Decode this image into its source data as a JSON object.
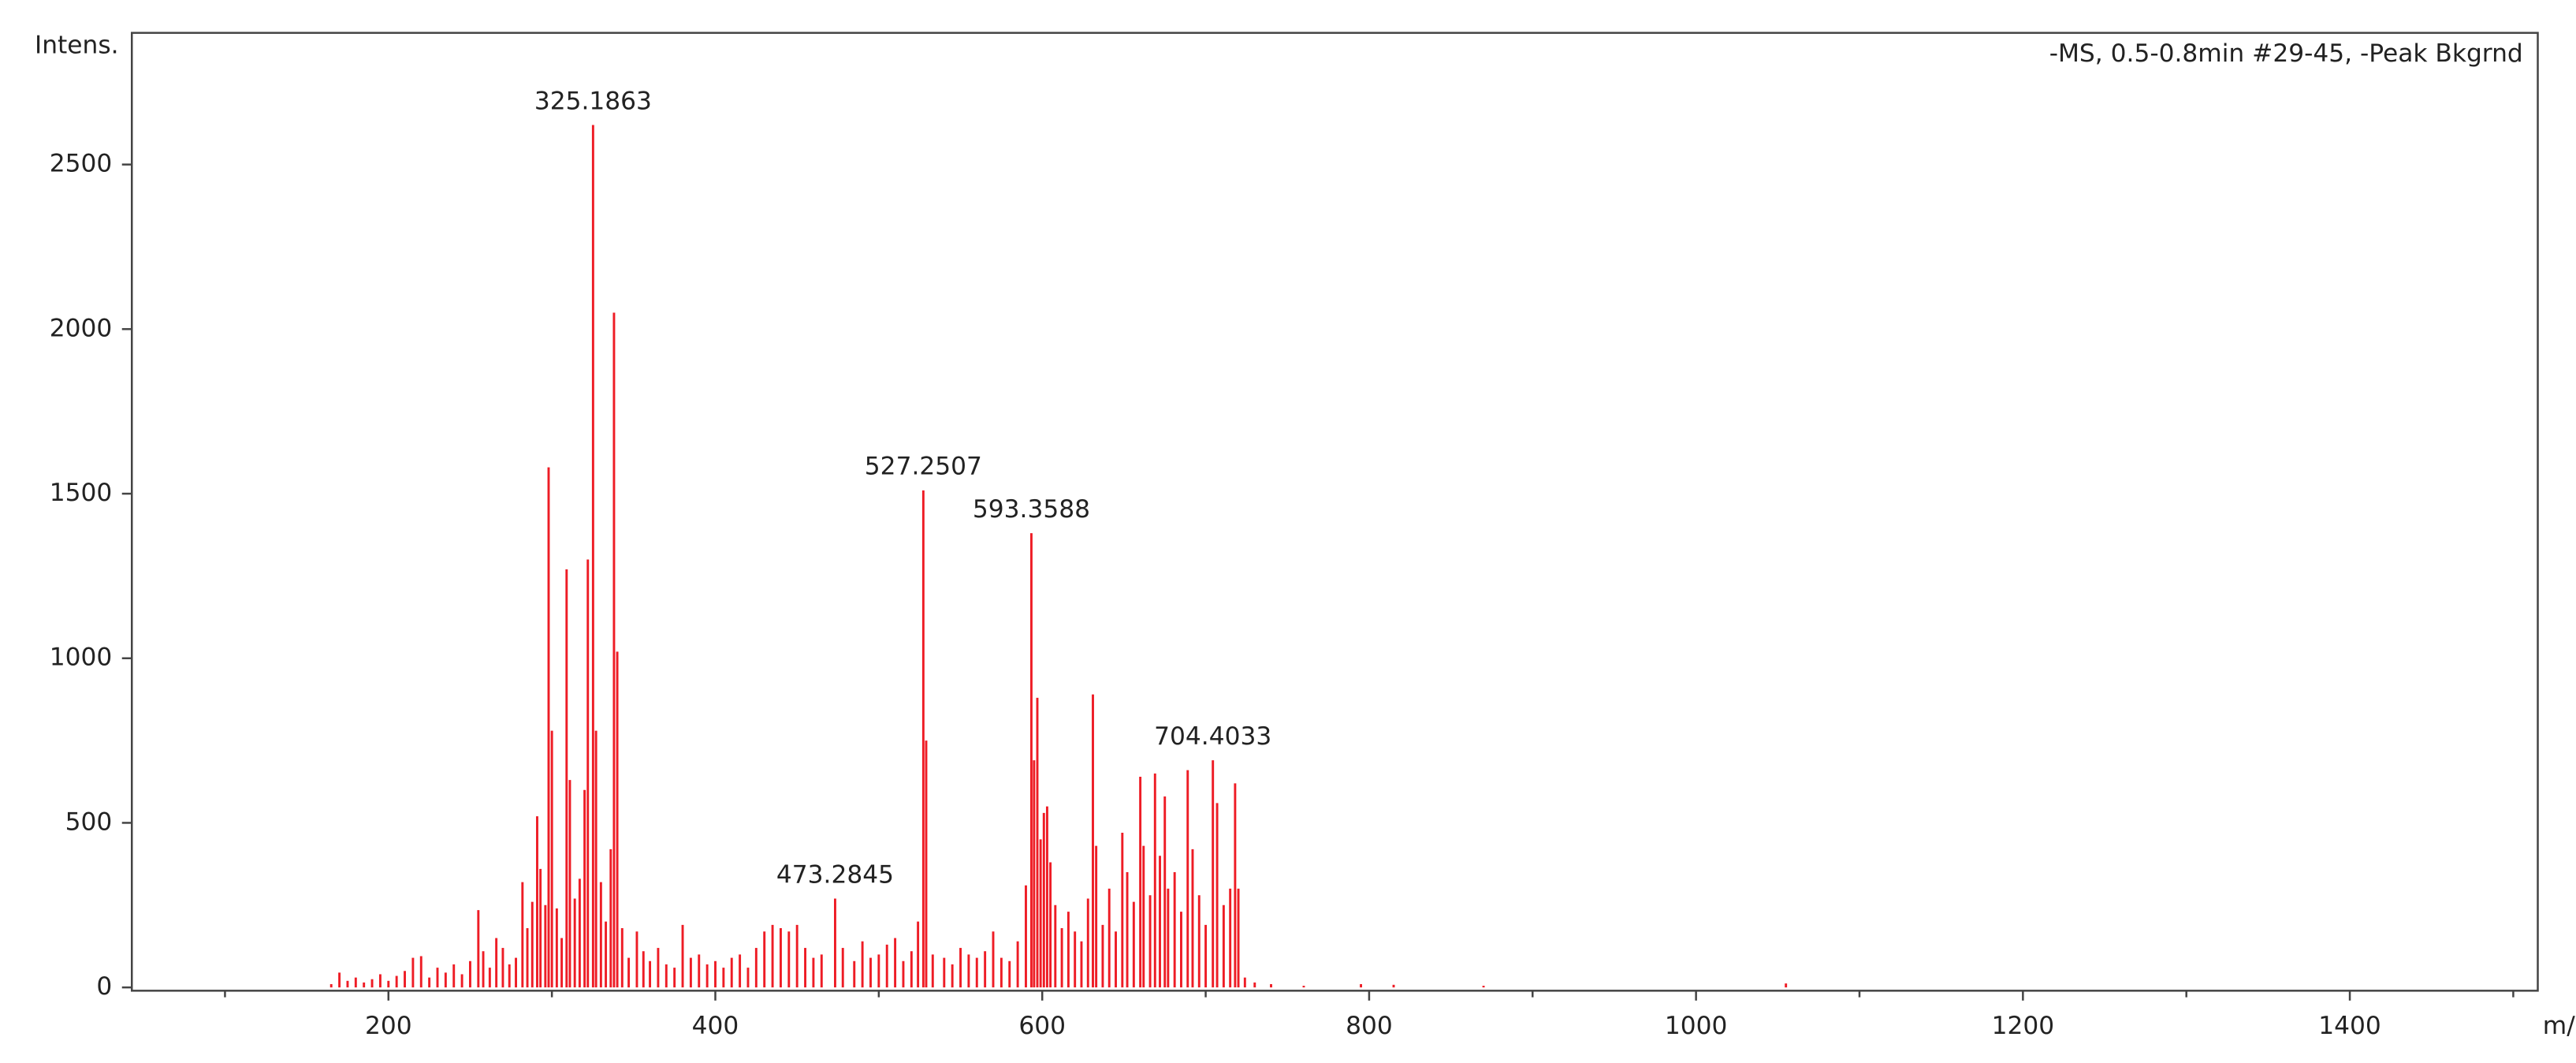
{
  "chart_data": {
    "type": "bar",
    "subtitle": "-MS, 0.5-0.8min #29-45, -Peak Bkgrnd",
    "y_label": "Intens.",
    "x_label": "m/z",
    "color": "#ee1c25",
    "xlim": [
      43,
      1515
    ],
    "ylim": [
      -10,
      2900
    ],
    "xticks": [
      200,
      400,
      600,
      800,
      1000,
      1200,
      1400
    ],
    "xminorticks": [
      100,
      300,
      500,
      700,
      900,
      1100,
      1300,
      1500
    ],
    "yticks": [
      0,
      500,
      1000,
      1500,
      2000,
      2500
    ],
    "x": [
      165,
      170,
      175,
      180,
      185,
      190,
      195,
      200,
      205,
      210,
      215,
      220,
      225,
      230,
      235,
      240,
      245,
      250,
      255,
      258,
      262,
      266,
      270,
      274,
      278,
      282,
      285,
      288,
      291,
      293,
      296,
      298,
      300,
      303,
      306,
      309,
      311,
      314,
      317,
      320,
      322,
      325.1863,
      327,
      330,
      333,
      336,
      338,
      340,
      343,
      347,
      352,
      356,
      360,
      365,
      370,
      375,
      380,
      385,
      390,
      395,
      400,
      405,
      410,
      415,
      420,
      425,
      430,
      435,
      440,
      445,
      450,
      455,
      460,
      465,
      473.2845,
      478,
      485,
      490,
      495,
      500,
      505,
      510,
      515,
      520,
      524,
      527.2507,
      529,
      533,
      540,
      545,
      550,
      555,
      560,
      565,
      570,
      575,
      580,
      585,
      590,
      593.3588,
      595,
      597,
      599,
      601,
      603,
      605,
      608,
      612,
      616,
      620,
      624,
      628,
      631,
      633,
      637,
      641,
      645,
      649,
      652,
      656,
      660,
      662,
      666,
      669,
      672,
      675,
      677,
      681,
      685,
      689,
      692,
      696,
      700,
      704.4033,
      707,
      711,
      715,
      718,
      720,
      724,
      730,
      740,
      760,
      795,
      815,
      870,
      1055
    ],
    "values": [
      10,
      45,
      20,
      30,
      15,
      25,
      40,
      20,
      35,
      50,
      90,
      95,
      30,
      60,
      45,
      70,
      40,
      80,
      235,
      110,
      60,
      150,
      120,
      70,
      90,
      320,
      180,
      260,
      520,
      360,
      250,
      1580,
      780,
      240,
      150,
      1270,
      630,
      270,
      330,
      600,
      1300,
      2620,
      780,
      320,
      200,
      420,
      2050,
      1020,
      180,
      90,
      170,
      110,
      80,
      120,
      70,
      60,
      190,
      90,
      100,
      70,
      80,
      60,
      90,
      100,
      60,
      120,
      170,
      190,
      180,
      170,
      190,
      120,
      90,
      100,
      270,
      120,
      80,
      140,
      90,
      100,
      130,
      150,
      80,
      110,
      200,
      1510,
      750,
      100,
      90,
      70,
      120,
      100,
      90,
      110,
      170,
      90,
      80,
      140,
      310,
      1380,
      690,
      880,
      450,
      530,
      550,
      380,
      250,
      180,
      230,
      170,
      140,
      270,
      890,
      430,
      190,
      300,
      170,
      470,
      350,
      260,
      640,
      430,
      280,
      650,
      400,
      580,
      300,
      350,
      230,
      660,
      420,
      280,
      190,
      690,
      560,
      250,
      300,
      620,
      300,
      30,
      15,
      10,
      5,
      10,
      8,
      5,
      12
    ],
    "annotations": [
      325.1863,
      527.2507,
      593.3588,
      704.4033,
      473.2845
    ]
  }
}
